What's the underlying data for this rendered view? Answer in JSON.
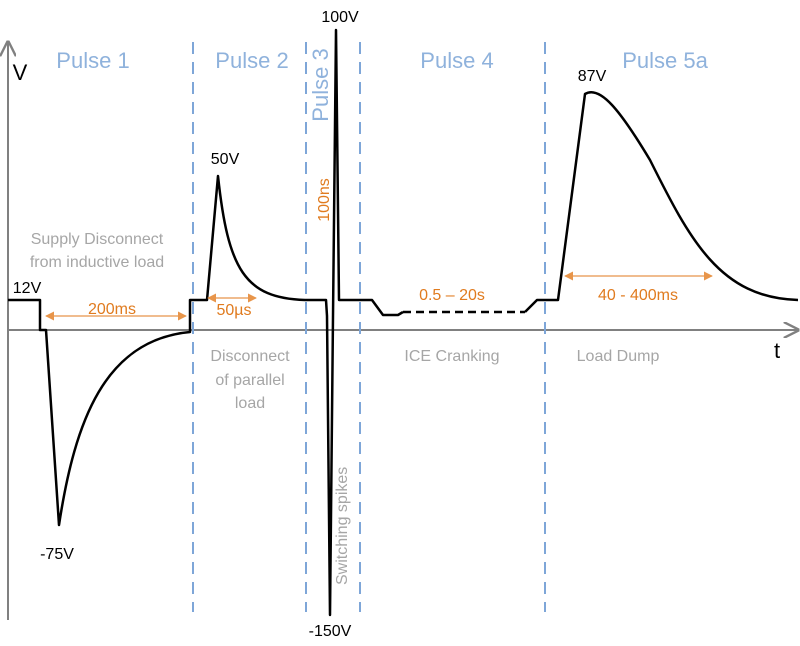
{
  "axes": {
    "y_label": "V",
    "x_label": "t"
  },
  "pulses": [
    {
      "title": "Pulse 1",
      "description": [
        "Supply Disconnect",
        "from inductive load"
      ],
      "duration": "200ms",
      "peak": "-75V"
    },
    {
      "title": "Pulse 2",
      "description": [
        "Disconnect",
        "of parallel",
        "load"
      ],
      "duration": "50µs",
      "peak": "50V"
    },
    {
      "title": "Pulse 3",
      "description": [
        "Switching spikes"
      ],
      "duration": "100ns",
      "peak_high": "100V",
      "peak_low": "-150V"
    },
    {
      "title": "Pulse 4",
      "description": [
        "ICE Cranking"
      ],
      "duration": "0.5 – 20s"
    },
    {
      "title": "Pulse 5a",
      "description": [
        "Load Dump"
      ],
      "duration": "40 - 400ms",
      "peak": "87V"
    }
  ],
  "baseline": "12V"
}
